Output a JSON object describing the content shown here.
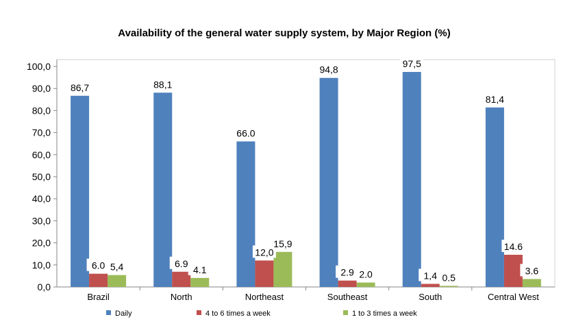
{
  "chart_data": {
    "type": "bar",
    "title": "Availability of the general water supply system, by Major Region (%)",
    "xlabel": "",
    "ylabel": "",
    "ylim": [
      0,
      100
    ],
    "y_ticks": [
      "0,0",
      "10,0",
      "20,0",
      "30,0",
      "40,0",
      "50,0",
      "60,0",
      "70,0",
      "80,0",
      "90,0",
      "100,0"
    ],
    "categories": [
      "Brazil",
      "North",
      "Northeast",
      "Southeast",
      "South",
      "Central West"
    ],
    "series": [
      {
        "name": "Daily",
        "color": "#4F81BD",
        "values": [
          86.7,
          88.1,
          66.0,
          94.8,
          97.5,
          81.4
        ],
        "labels": [
          "86,7",
          "88,1",
          "66.0",
          "94,8",
          "97,5",
          "81,4"
        ]
      },
      {
        "name": "4 to 6 times a week",
        "color": "#C0504D",
        "values": [
          6.0,
          6.9,
          12.0,
          2.9,
          1.4,
          14.6
        ],
        "labels": [
          "6.0",
          "6.9",
          "12,0",
          "2.9",
          "1,4",
          "14.6"
        ]
      },
      {
        "name": "1 to 3 times a week",
        "color": "#9BBB59",
        "values": [
          5.4,
          4.1,
          15.9,
          2.0,
          0.5,
          3.6
        ],
        "labels": [
          "5,4",
          "4.1",
          "15,9",
          "2.0",
          "0.5",
          "3.6"
        ]
      }
    ],
    "grid": false,
    "legend": "bottom"
  }
}
